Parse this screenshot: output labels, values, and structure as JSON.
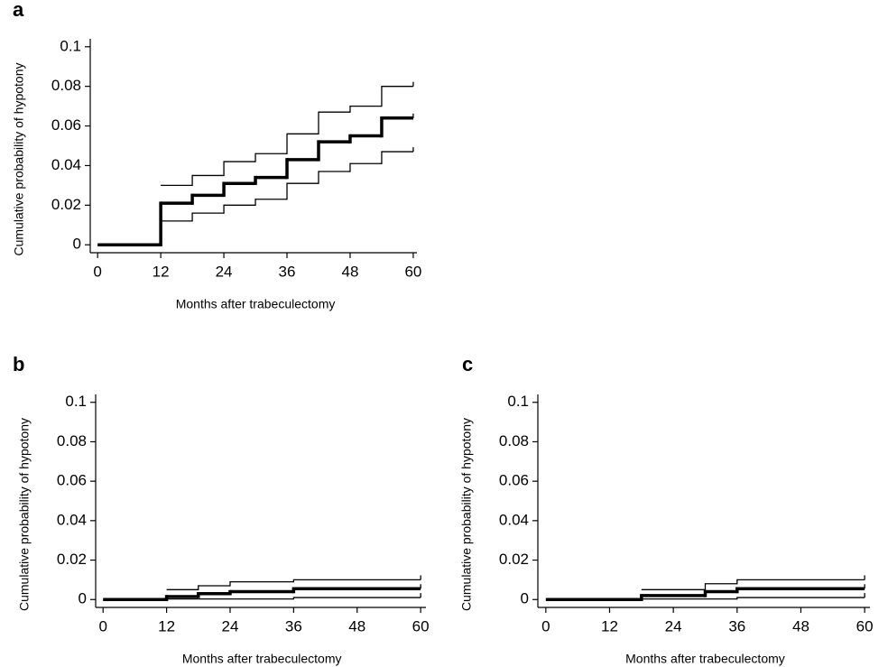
{
  "chart_data": [
    {
      "type": "step",
      "panel_label": "a",
      "xlabel": "Months after trabeculectomy",
      "ylabel": "Cumulative probability of hypotony",
      "x": [
        0,
        12,
        18,
        24,
        30,
        36,
        42,
        48,
        54,
        60
      ],
      "series": [
        {
          "color": "#000000",
          "line_width": 3.5,
          "values": [
            0,
            0.021,
            0.025,
            0.031,
            0.034,
            0.043,
            0.052,
            0.055,
            0.064,
            0.064
          ]
        },
        {
          "color": "#000000",
          "line_width": 1.3,
          "values": [
            null,
            0.03,
            0.035,
            0.042,
            0.046,
            0.056,
            0.067,
            0.07,
            0.08,
            0.08
          ]
        },
        {
          "color": "#000000",
          "line_width": 1.3,
          "values": [
            null,
            0.012,
            0.016,
            0.02,
            0.023,
            0.031,
            0.037,
            0.041,
            0.047,
            0.047
          ]
        }
      ],
      "xlim": [
        -1.4,
        60.7
      ],
      "xticks": [
        0,
        12,
        24,
        36,
        48,
        60
      ],
      "ylim": [
        -0.004,
        0.104
      ],
      "yticks": [
        0,
        0.02,
        0.04,
        0.06,
        0.08,
        0.1
      ]
    },
    {
      "type": "step",
      "panel_label": "b",
      "xlabel": "Months after trabeculectomy",
      "ylabel": "Cumulative probability of hypotony",
      "x": [
        0,
        12,
        18,
        24,
        36,
        60
      ],
      "series": [
        {
          "color": "#000000",
          "line_width": 3.5,
          "values": [
            0,
            0.0015,
            0.003,
            0.004,
            0.0055,
            0.0055
          ]
        },
        {
          "color": "#000000",
          "line_width": 1.3,
          "values": [
            null,
            0.005,
            0.007,
            0.009,
            0.01,
            0.01
          ]
        },
        {
          "color": "#000000",
          "line_width": 1.3,
          "values": [
            null,
            0.0003,
            0.0003,
            0.0003,
            0.001,
            0.001
          ]
        }
      ],
      "xlim": [
        -1.4,
        61
      ],
      "xticks": [
        0,
        12,
        24,
        36,
        48,
        60
      ],
      "ylim": [
        -0.004,
        0.104
      ],
      "yticks": [
        0,
        0.02,
        0.04,
        0.06,
        0.08,
        0.1
      ]
    },
    {
      "type": "step",
      "panel_label": "c",
      "xlabel": "Months after trabeculectomy",
      "ylabel": "Cumulative probability of hypotony",
      "x": [
        0,
        18,
        30,
        36,
        60
      ],
      "series": [
        {
          "color": "#000000",
          "line_width": 3.5,
          "values": [
            0,
            0.002,
            0.004,
            0.0055,
            0.0055
          ]
        },
        {
          "color": "#000000",
          "line_width": 1.3,
          "values": [
            null,
            0.005,
            0.008,
            0.01,
            0.01
          ]
        },
        {
          "color": "#000000",
          "line_width": 1.3,
          "values": [
            null,
            0.0003,
            0.0003,
            0.001,
            0.001
          ]
        }
      ],
      "xlim": [
        -1.5,
        61
      ],
      "xticks": [
        0,
        12,
        24,
        36,
        48,
        60
      ],
      "ylim": [
        -0.004,
        0.104
      ],
      "yticks": [
        0,
        0.02,
        0.04,
        0.06,
        0.08,
        0.1
      ]
    }
  ]
}
